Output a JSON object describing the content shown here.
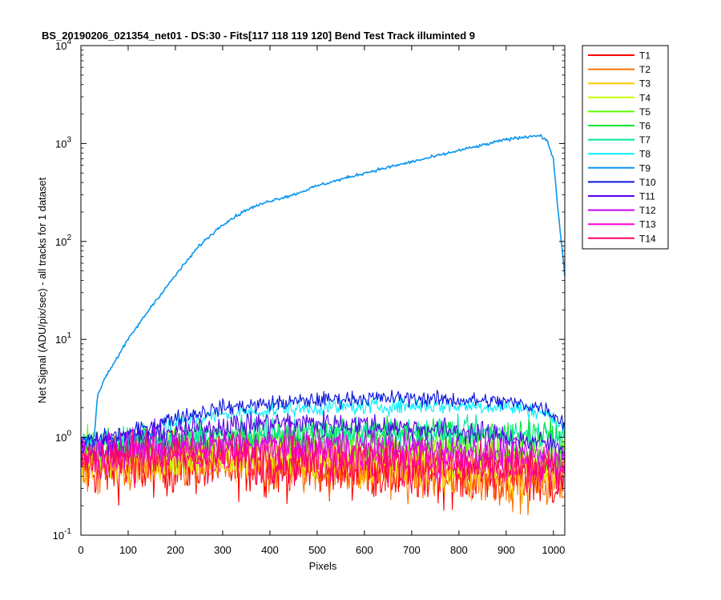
{
  "chart_data": {
    "type": "line",
    "title": "BS_20190206_021354_net01 - DS:30 - Fits[117  118  119  120]   Bend Test        Track illuminted 9",
    "xlabel": "Pixels",
    "ylabel": "Net Signal (ADU/pix/sec) - all tracks for 1 dataset",
    "xlim": [
      0,
      1024
    ],
    "ylim": [
      0.1,
      10000
    ],
    "yscale": "log",
    "grid": false,
    "legend_position": "outside-right",
    "x_ticks": [
      "0",
      "100",
      "200",
      "300",
      "400",
      "500",
      "600",
      "700",
      "800",
      "900",
      "1000"
    ],
    "y_ticks": [
      {
        "base": "10",
        "exp": "-1",
        "value": 0.1
      },
      {
        "base": "10",
        "exp": "0",
        "value": 1
      },
      {
        "base": "10",
        "exp": "1",
        "value": 10
      },
      {
        "base": "10",
        "exp": "2",
        "value": 100
      },
      {
        "base": "10",
        "exp": "3",
        "value": 1000
      },
      {
        "base": "10",
        "exp": "4",
        "value": 10000
      }
    ],
    "series": [
      {
        "name": "T1",
        "color": "#ff0000",
        "noise": 0.14,
        "x": [
          0,
          100,
          300,
          500,
          700,
          900,
          1024
        ],
        "y": [
          0.45,
          0.48,
          0.5,
          0.48,
          0.42,
          0.38,
          0.35
        ]
      },
      {
        "name": "T2",
        "color": "#ff7300",
        "noise": 0.14,
        "x": [
          0,
          100,
          300,
          500,
          700,
          900,
          1024
        ],
        "y": [
          0.5,
          0.52,
          0.53,
          0.5,
          0.44,
          0.38,
          0.33
        ]
      },
      {
        "name": "T3",
        "color": "#ffc800",
        "noise": 0.12,
        "x": [
          0,
          100,
          300,
          500,
          700,
          900,
          1024
        ],
        "y": [
          0.55,
          0.58,
          0.6,
          0.57,
          0.5,
          0.44,
          0.4
        ]
      },
      {
        "name": "T4",
        "color": "#c8ff00",
        "noise": 0.1,
        "x": [
          0,
          100,
          300,
          500,
          700,
          900,
          1024
        ],
        "y": [
          0.62,
          0.65,
          0.68,
          0.66,
          0.6,
          0.55,
          0.5
        ]
      },
      {
        "name": "T5",
        "color": "#5aff00",
        "noise": 0.09,
        "x": [
          0,
          100,
          300,
          500,
          700,
          900,
          1024
        ],
        "y": [
          0.75,
          0.8,
          0.9,
          0.88,
          0.8,
          0.72,
          0.65
        ]
      },
      {
        "name": "T6",
        "color": "#00e632",
        "noise": 0.08,
        "x": [
          0,
          100,
          300,
          500,
          700,
          900,
          1024
        ],
        "y": [
          0.8,
          0.85,
          1.0,
          1.1,
          1.1,
          1.05,
          1.0
        ]
      },
      {
        "name": "T7",
        "color": "#00e6a0",
        "noise": 0.07,
        "x": [
          0,
          100,
          300,
          500,
          700,
          900,
          1024
        ],
        "y": [
          0.85,
          0.9,
          1.05,
          1.15,
          1.15,
          1.1,
          1.05
        ]
      },
      {
        "name": "T8",
        "color": "#00f0ff",
        "noise": 0.04,
        "x": [
          0,
          100,
          200,
          300,
          400,
          500,
          600,
          700,
          800,
          900,
          980,
          1024
        ],
        "y": [
          0.85,
          1.0,
          1.4,
          1.7,
          1.9,
          2.0,
          2.05,
          2.1,
          2.1,
          2.05,
          1.8,
          1.2
        ]
      },
      {
        "name": "T9",
        "color": "#0a96f0",
        "noise": 0.008,
        "x": [
          0,
          28,
          35,
          50,
          100,
          150,
          200,
          250,
          300,
          350,
          400,
          450,
          500,
          550,
          600,
          650,
          700,
          750,
          800,
          850,
          900,
          950,
          970,
          985,
          1000,
          1010,
          1024
        ],
        "y": [
          0.95,
          1.0,
          2.6,
          4.0,
          10,
          22,
          45,
          90,
          150,
          210,
          260,
          300,
          370,
          430,
          500,
          570,
          650,
          740,
          850,
          960,
          1100,
          1190,
          1200,
          1100,
          700,
          200,
          45
        ]
      },
      {
        "name": "T10",
        "color": "#0a14dc",
        "noise": 0.04,
        "x": [
          0,
          100,
          200,
          300,
          400,
          500,
          600,
          700,
          800,
          900,
          980,
          1024
        ],
        "y": [
          0.9,
          1.1,
          1.6,
          2.0,
          2.2,
          2.4,
          2.5,
          2.5,
          2.4,
          2.3,
          2.0,
          1.4
        ]
      },
      {
        "name": "T11",
        "color": "#5a00e6",
        "noise": 0.06,
        "x": [
          0,
          100,
          200,
          300,
          400,
          500,
          600,
          700,
          800,
          900,
          1024
        ],
        "y": [
          0.8,
          0.95,
          1.15,
          1.3,
          1.4,
          1.4,
          1.35,
          1.25,
          1.15,
          1.0,
          0.8
        ]
      },
      {
        "name": "T12",
        "color": "#c800f0",
        "noise": 0.08,
        "x": [
          0,
          100,
          300,
          500,
          700,
          900,
          1024
        ],
        "y": [
          0.7,
          0.78,
          0.85,
          0.88,
          0.8,
          0.7,
          0.6
        ]
      },
      {
        "name": "T13",
        "color": "#ff00dc",
        "noise": 0.1,
        "x": [
          0,
          100,
          300,
          500,
          700,
          900,
          1024
        ],
        "y": [
          0.65,
          0.7,
          0.72,
          0.7,
          0.62,
          0.55,
          0.5
        ]
      },
      {
        "name": "T14",
        "color": "#ff0064",
        "noise": 0.12,
        "x": [
          0,
          100,
          300,
          500,
          700,
          900,
          1024
        ],
        "y": [
          0.6,
          0.62,
          0.62,
          0.58,
          0.52,
          0.46,
          0.42
        ]
      }
    ]
  }
}
